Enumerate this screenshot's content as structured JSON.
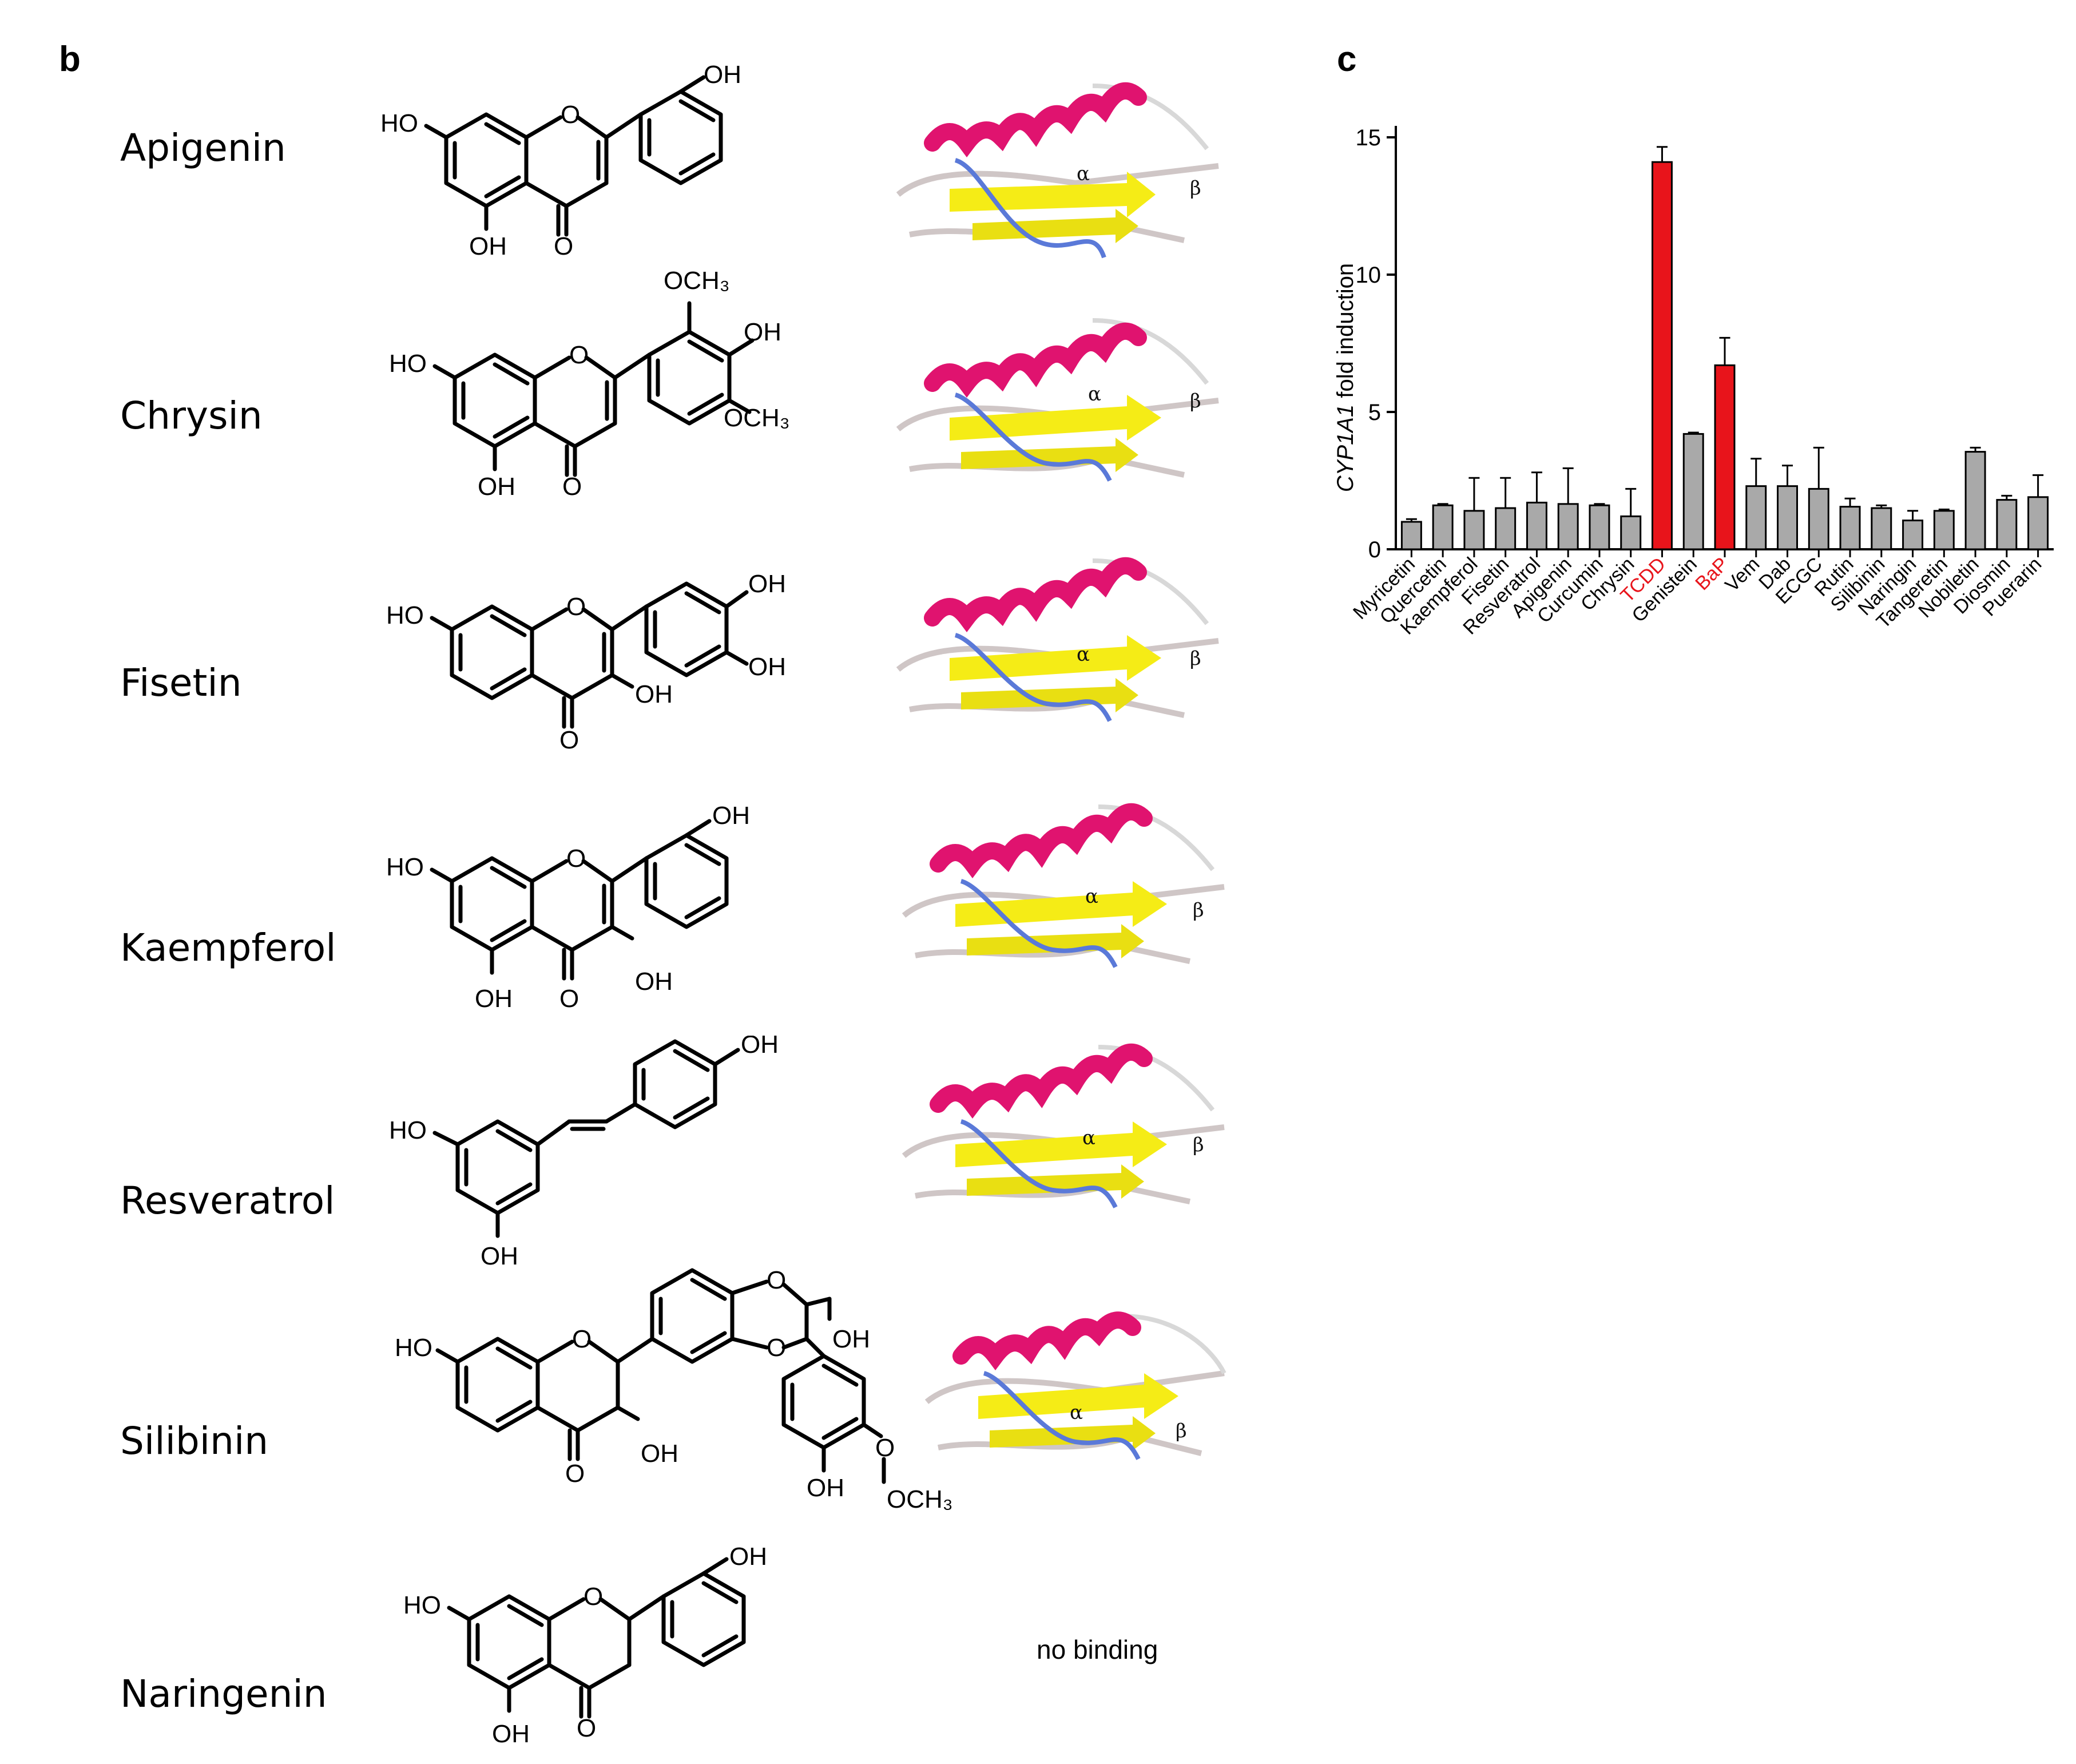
{
  "panels": {
    "b": "b",
    "c": "c"
  },
  "compounds": [
    {
      "name": "Apigenin",
      "groups": [
        "HO",
        "O",
        "OH",
        "OH",
        "O"
      ]
    },
    {
      "name": "Chrysin",
      "groups": [
        "HO",
        "O",
        "OCH₃",
        "OH",
        "OCH₃",
        "OH",
        "O"
      ]
    },
    {
      "name": "Fisetin",
      "groups": [
        "HO",
        "O",
        "OH",
        "OH",
        "OH",
        "O"
      ]
    },
    {
      "name": "Kaempferol",
      "groups": [
        "HO",
        "O",
        "OH",
        "OH",
        "OH",
        "O"
      ]
    },
    {
      "name": "Resveratrol",
      "groups": [
        "HO",
        "OH",
        "OH"
      ]
    },
    {
      "name": "Silibinin",
      "groups": [
        "HO",
        "O",
        "O",
        "OH",
        "O",
        "OH",
        "O",
        "OH",
        "O",
        "OCH₃"
      ]
    },
    {
      "name": "Naringenin",
      "groups": [
        "HO",
        "O",
        "OH",
        "OH",
        "O"
      ]
    }
  ],
  "protein_labels": {
    "alpha": "α",
    "beta": "β"
  },
  "no_binding_text": "no binding",
  "chart_data": {
    "type": "bar",
    "ylabel_italic": "CYP1A1",
    "ylabel_rest": " fold induction",
    "ylim": [
      0,
      15
    ],
    "yticks": [
      0,
      5,
      10,
      15
    ],
    "categories": [
      "Myricetin",
      "Quercetin",
      "Kaempferol",
      "Fisetin",
      "Resveratrol",
      "Apigenin",
      "Curcumin",
      "Chrysin",
      "TCDD",
      "Genistein",
      "BaP",
      "Vem",
      "Dab",
      "ECGC",
      "Rutin",
      "Silibinin",
      "Naringin",
      "Tangeretin",
      "Nobiletin",
      "Diosmin",
      "Puerarin"
    ],
    "values": [
      1.0,
      1.6,
      1.4,
      1.5,
      1.7,
      1.65,
      1.6,
      1.2,
      14.1,
      4.2,
      6.7,
      2.3,
      2.3,
      2.2,
      1.55,
      1.5,
      1.05,
      1.4,
      3.55,
      1.8,
      1.9
    ],
    "errors": [
      0.1,
      0.05,
      1.2,
      1.1,
      1.1,
      1.3,
      0.05,
      1.0,
      0.55,
      0.05,
      1.0,
      1.0,
      0.75,
      1.5,
      0.3,
      0.1,
      0.35,
      0.05,
      0.15,
      0.15,
      0.8
    ],
    "highlight": [
      "TCDD",
      "BaP"
    ],
    "colors": {
      "default": "#a9a9a9",
      "highlight": "#e8141b",
      "highlight_label": "#e8141b"
    },
    "grid": false
  }
}
